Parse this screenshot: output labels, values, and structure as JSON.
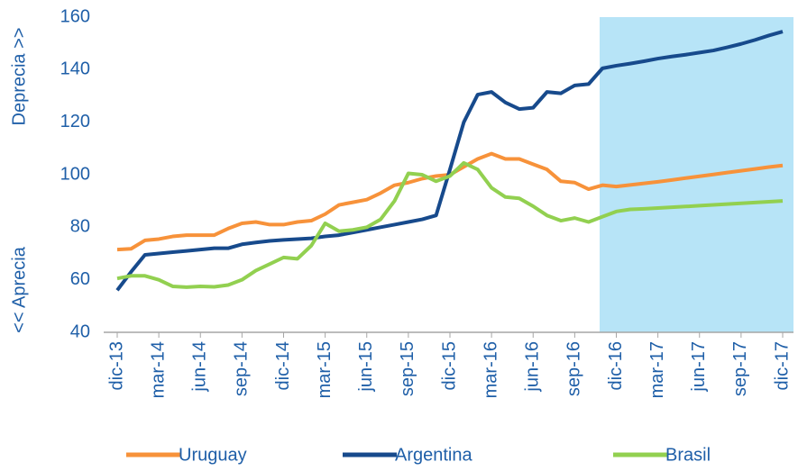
{
  "chart_data": {
    "type": "line",
    "y_label_top": "Deprecia >>",
    "y_label_bottom": "<< Aprecia",
    "categories": [
      "dic-13",
      null,
      null,
      "mar-14",
      null,
      null,
      "jun-14",
      null,
      null,
      "sep-14",
      null,
      null,
      "dic-14",
      null,
      null,
      "mar-15",
      null,
      null,
      "jun-15",
      null,
      null,
      "sep-15",
      null,
      null,
      "dic-15",
      null,
      null,
      "mar-16",
      null,
      null,
      "jun-16",
      null,
      null,
      "sep-16",
      null,
      null,
      "dic-16",
      null,
      null,
      "mar-17",
      null,
      null,
      "jun-17",
      null,
      null,
      "sep-17",
      null,
      null,
      "dic-17"
    ],
    "ylim": [
      40,
      160
    ],
    "yticks": [
      40,
      60,
      80,
      100,
      120,
      140,
      160
    ],
    "grid": false,
    "series": [
      {
        "name": "Uruguay",
        "color": "#f7923a",
        "values": [
          71.5,
          71.8,
          75,
          75.5,
          76.5,
          77,
          77,
          77,
          79.5,
          81.5,
          82,
          81,
          81,
          82,
          82.5,
          85,
          88.5,
          89.5,
          90.5,
          93,
          96,
          97,
          98.5,
          99.5,
          100,
          103,
          106,
          108,
          106,
          106,
          104,
          102,
          97.5,
          97,
          94.5,
          96,
          95.5,
          96.1,
          96.7,
          97.3,
          98,
          98.7,
          99.4,
          100.1,
          100.8,
          101.5,
          102.2,
          102.9,
          103.5
        ]
      },
      {
        "name": "Argentina",
        "color": "#174a8c",
        "values": [
          56,
          63,
          69.5,
          70,
          70.5,
          71,
          71.5,
          72,
          72,
          73.5,
          74.2,
          74.8,
          75.2,
          75.5,
          75.8,
          76.5,
          77,
          78,
          79,
          80,
          81,
          82,
          83,
          84.5,
          102,
          120,
          130.5,
          131.5,
          127.5,
          125,
          125.5,
          131.5,
          131,
          134,
          134.5,
          140.5,
          141.5,
          142.3,
          143.2,
          144.2,
          145,
          145.7,
          146.5,
          147.3,
          148.5,
          149.8,
          151.3,
          153,
          154.5
        ]
      },
      {
        "name": "Brasil",
        "color": "#92d050",
        "values": [
          60.5,
          61.5,
          61.5,
          60,
          57.5,
          57.2,
          57.5,
          57.3,
          58,
          60,
          63.5,
          66,
          68.5,
          68,
          73,
          81.5,
          78.5,
          79,
          80,
          83,
          90,
          100.5,
          100,
          97.5,
          99.5,
          104.5,
          102,
          95,
          91.5,
          91,
          88,
          84.5,
          82.5,
          83.5,
          82,
          84,
          86,
          86.8,
          87,
          87.3,
          87.6,
          87.9,
          88.2,
          88.5,
          88.8,
          89.1,
          89.4,
          89.7,
          90
        ]
      }
    ]
  }
}
